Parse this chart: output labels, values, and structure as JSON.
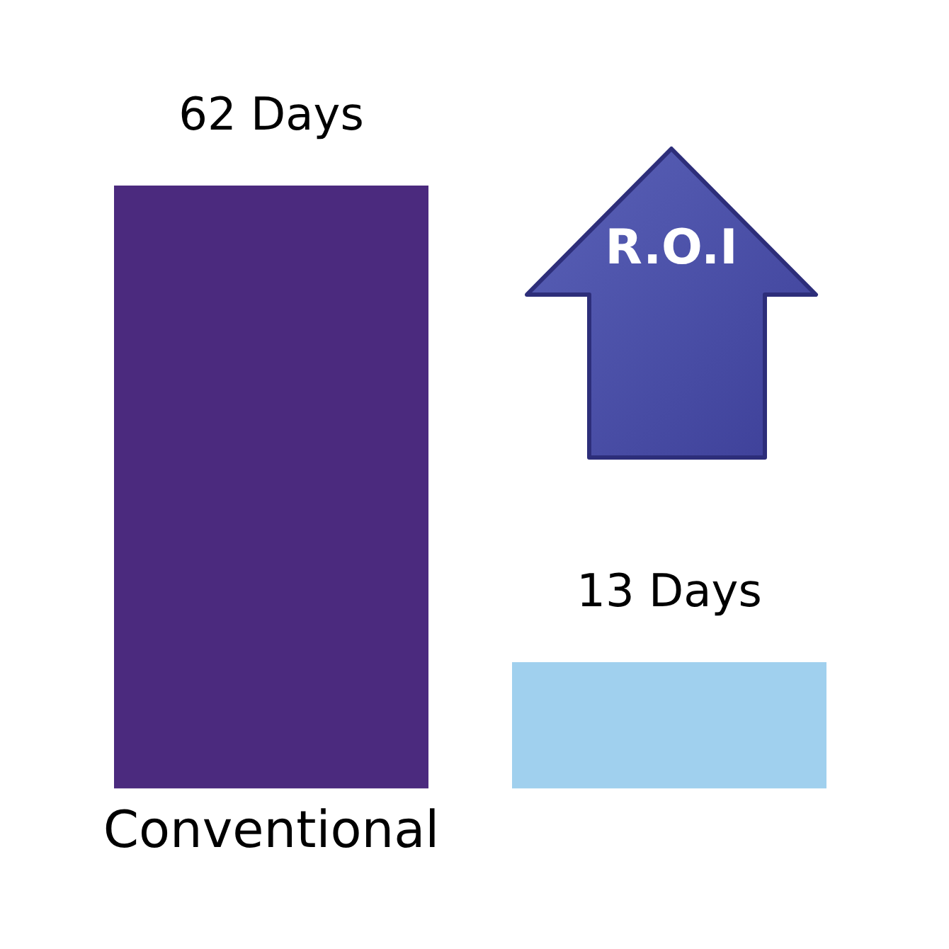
{
  "chart_data": {
    "type": "bar",
    "categories": [
      "Conventional",
      null
    ],
    "values": [
      62,
      13
    ],
    "colors": [
      "#4b2a7e",
      "#a0d0ee"
    ],
    "value_labels": [
      "62 Days",
      "13 Days"
    ],
    "annotations": [
      "R.O.I"
    ],
    "grid": false,
    "legend": false
  }
}
